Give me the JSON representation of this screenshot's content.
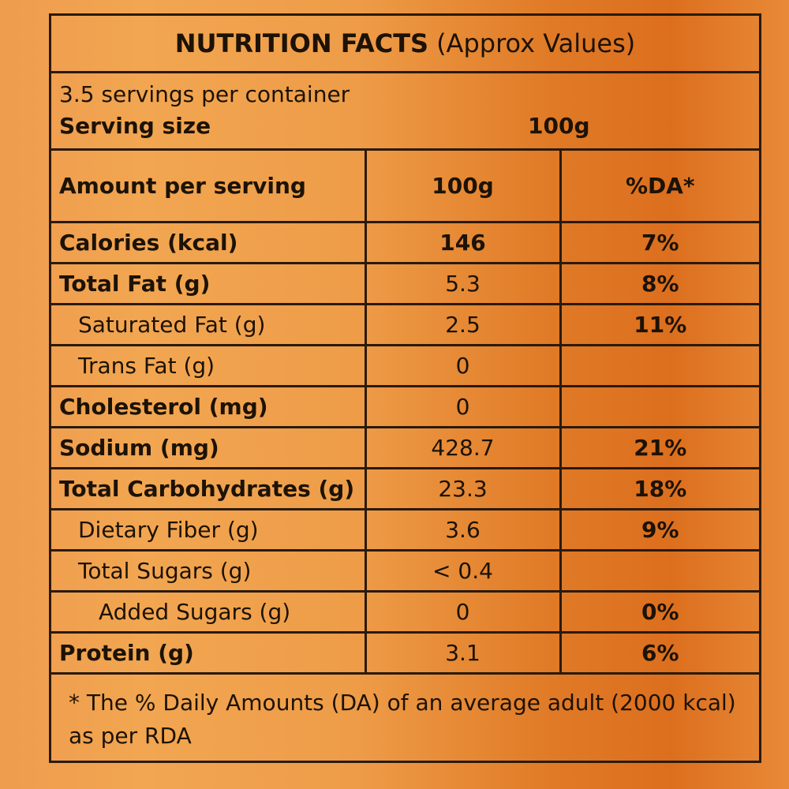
{
  "title": {
    "bold": "NUTRITION FACTS",
    "light": "(Approx Values)"
  },
  "servings_per_container": "3.5 servings per container",
  "serving_size": {
    "label": "Serving size",
    "value": "100g"
  },
  "table_header": {
    "col1": "Amount per serving",
    "col2": "100g",
    "col3": "%DA*"
  },
  "rows": [
    {
      "label": "Calories (kcal)",
      "amount": "146",
      "da": "7%"
    },
    {
      "label": "Total Fat (g)",
      "amount": "5.3",
      "da": "8%"
    },
    {
      "label": "Saturated Fat (g)",
      "amount": "2.5",
      "da": "11%"
    },
    {
      "label": "Trans Fat (g)",
      "amount": "0",
      "da": ""
    },
    {
      "label": "Cholesterol (mg)",
      "amount": "0",
      "da": ""
    },
    {
      "label": "Sodium (mg)",
      "amount": "428.7",
      "da": "21%"
    },
    {
      "label": "Total Carbohydrates (g)",
      "amount": "23.3",
      "da": "18%"
    },
    {
      "label": "Dietary Fiber (g)",
      "amount": "3.6",
      "da": "9%"
    },
    {
      "label": "Total Sugars (g)",
      "amount": "< 0.4",
      "da": ""
    },
    {
      "label": "Added Sugars (g)",
      "amount": "0",
      "da": "0%"
    },
    {
      "label": "Protein (g)",
      "amount": "3.1",
      "da": "6%"
    }
  ],
  "footnote": "* The % Daily Amounts (DA) of an average adult (2000 kcal) as per RDA"
}
